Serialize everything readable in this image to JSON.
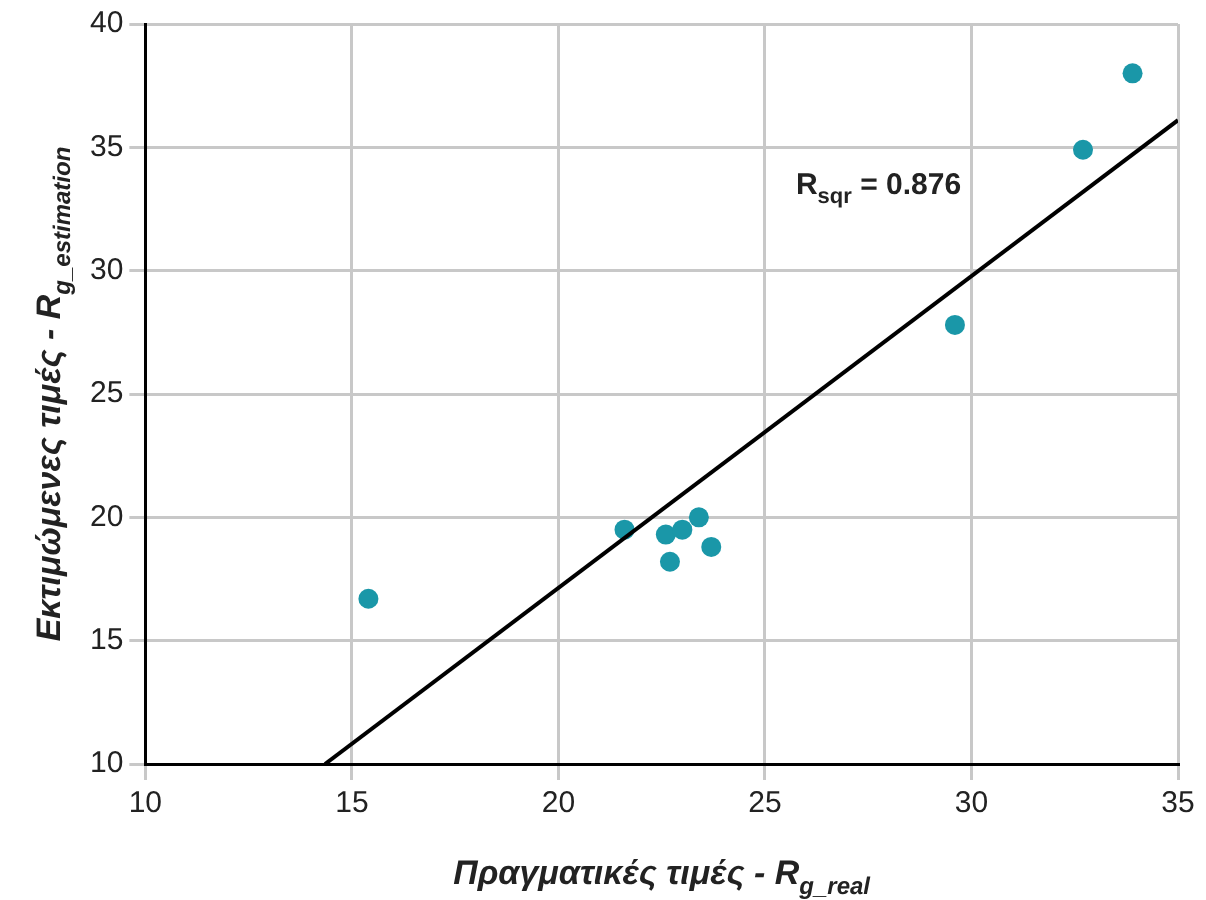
{
  "chart_data": {
    "type": "scatter",
    "xlabel": "Πραγματικές τιμές - R$_{g_real}$",
    "ylabel": "Εκτιμώμενες τιμές - R$_{g_estimation}$",
    "series": [
      {
        "color": "#1a97a8",
        "marker": "circle",
        "x": [
          15.4,
          21.6,
          22.6,
          22.7,
          23.0,
          23.4,
          23.7,
          29.6,
          32.7,
          33.9
        ],
        "values": [
          16.7,
          19.5,
          19.3,
          18.2,
          19.5,
          20.0,
          18.8,
          27.8,
          34.9,
          38.0
        ]
      },
      {
        "type": "line",
        "color": "#000000",
        "marker": "none",
        "line_style": "solid",
        "x": [
          14.35,
          35
        ],
        "values": [
          10,
          36.1
        ]
      }
    ],
    "annotations": [
      "R$_{sqr}$ = 0.876"
    ],
    "xlim": [
      10,
      35
    ],
    "ylim": [
      10,
      40
    ],
    "xticks": [
      10,
      15,
      20,
      25,
      30,
      35
    ],
    "yticks": [
      10,
      15,
      20,
      25,
      30,
      35,
      40
    ],
    "grid": true,
    "legend": false
  }
}
